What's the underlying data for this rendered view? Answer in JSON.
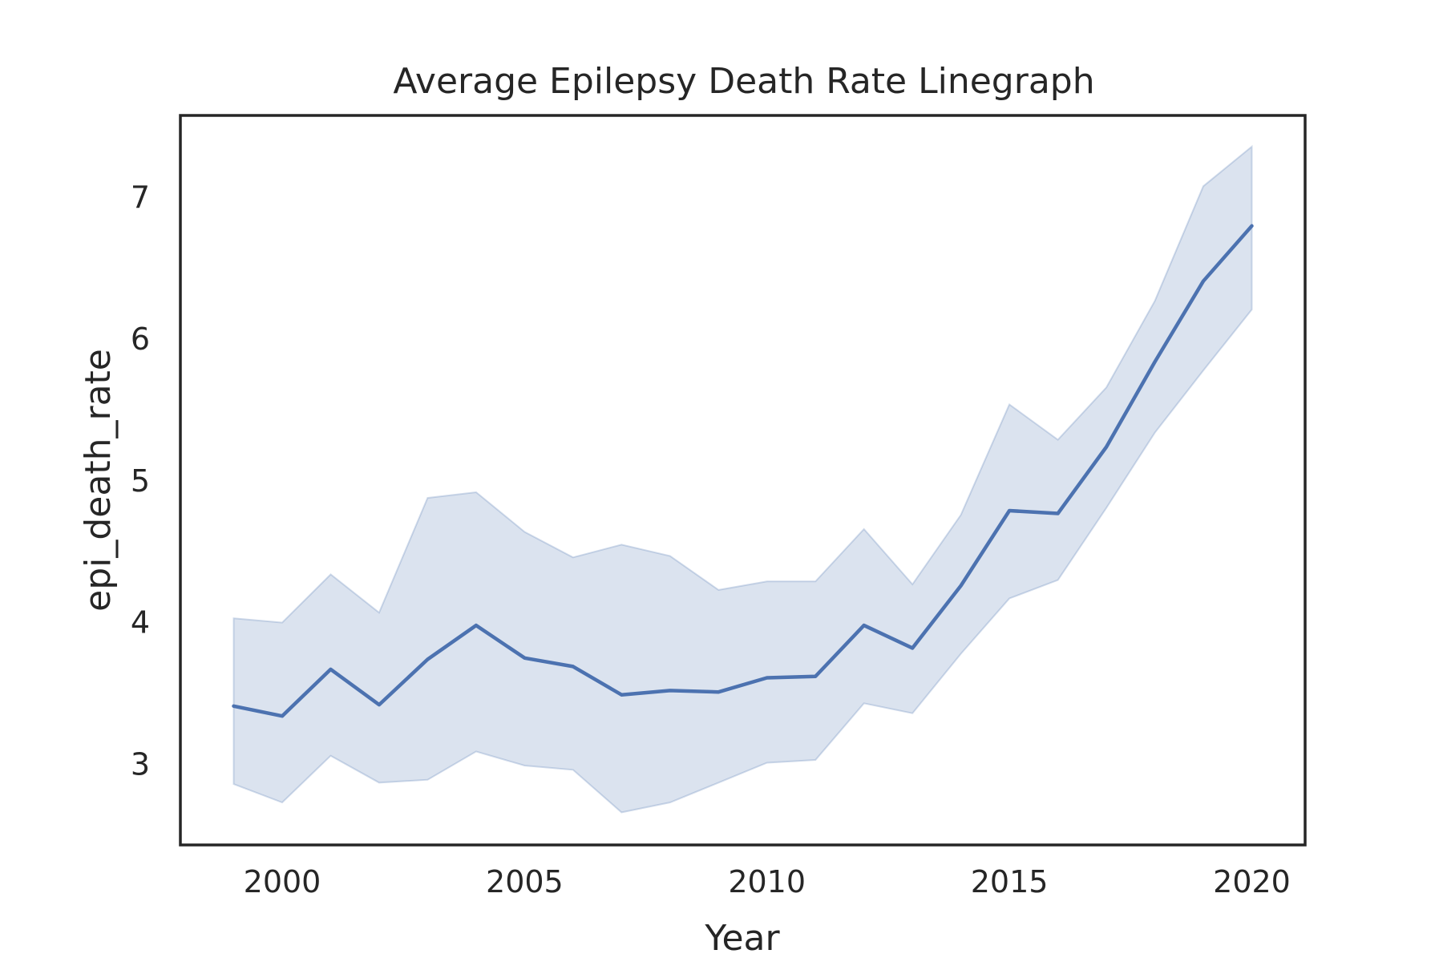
{
  "chart_data": {
    "type": "line",
    "title": "Average Epilepsy Death Rate Linegraph",
    "xlabel": "Year",
    "ylabel": "epi_death_rate",
    "xlim": [
      1997.9,
      2021.1
    ],
    "ylim": [
      2.43,
      7.58
    ],
    "xticks": [
      2000,
      2005,
      2010,
      2015,
      2020
    ],
    "yticks": [
      3,
      4,
      5,
      6,
      7
    ],
    "grid": false,
    "legend": "none",
    "colors": {
      "line": "#4c72b0",
      "band": "#4c72b0",
      "frame": "#262626"
    },
    "x": [
      1999,
      2000,
      2001,
      2002,
      2003,
      2004,
      2005,
      2006,
      2007,
      2008,
      2009,
      2010,
      2011,
      2012,
      2013,
      2014,
      2015,
      2016,
      2017,
      2018,
      2019,
      2020
    ],
    "series": [
      {
        "values": [
          3.41,
          3.34,
          3.67,
          3.42,
          3.74,
          3.98,
          3.75,
          3.69,
          3.49,
          3.52,
          3.51,
          3.61,
          3.62,
          3.98,
          3.82,
          4.26,
          4.79,
          4.77,
          5.24,
          5.84,
          6.41,
          6.8
        ],
        "ci_lower": [
          2.86,
          2.73,
          3.06,
          2.87,
          2.89,
          3.09,
          2.99,
          2.96,
          2.66,
          2.73,
          2.87,
          3.01,
          3.03,
          3.43,
          3.36,
          3.78,
          4.17,
          4.3,
          4.81,
          5.34,
          5.78,
          6.21
        ],
        "ci_upper": [
          4.03,
          4.0,
          4.34,
          4.07,
          4.88,
          4.92,
          4.64,
          4.46,
          4.55,
          4.47,
          4.23,
          4.29,
          4.29,
          4.66,
          4.27,
          4.76,
          5.54,
          5.29,
          5.66,
          6.27,
          7.08,
          7.36
        ]
      }
    ]
  }
}
